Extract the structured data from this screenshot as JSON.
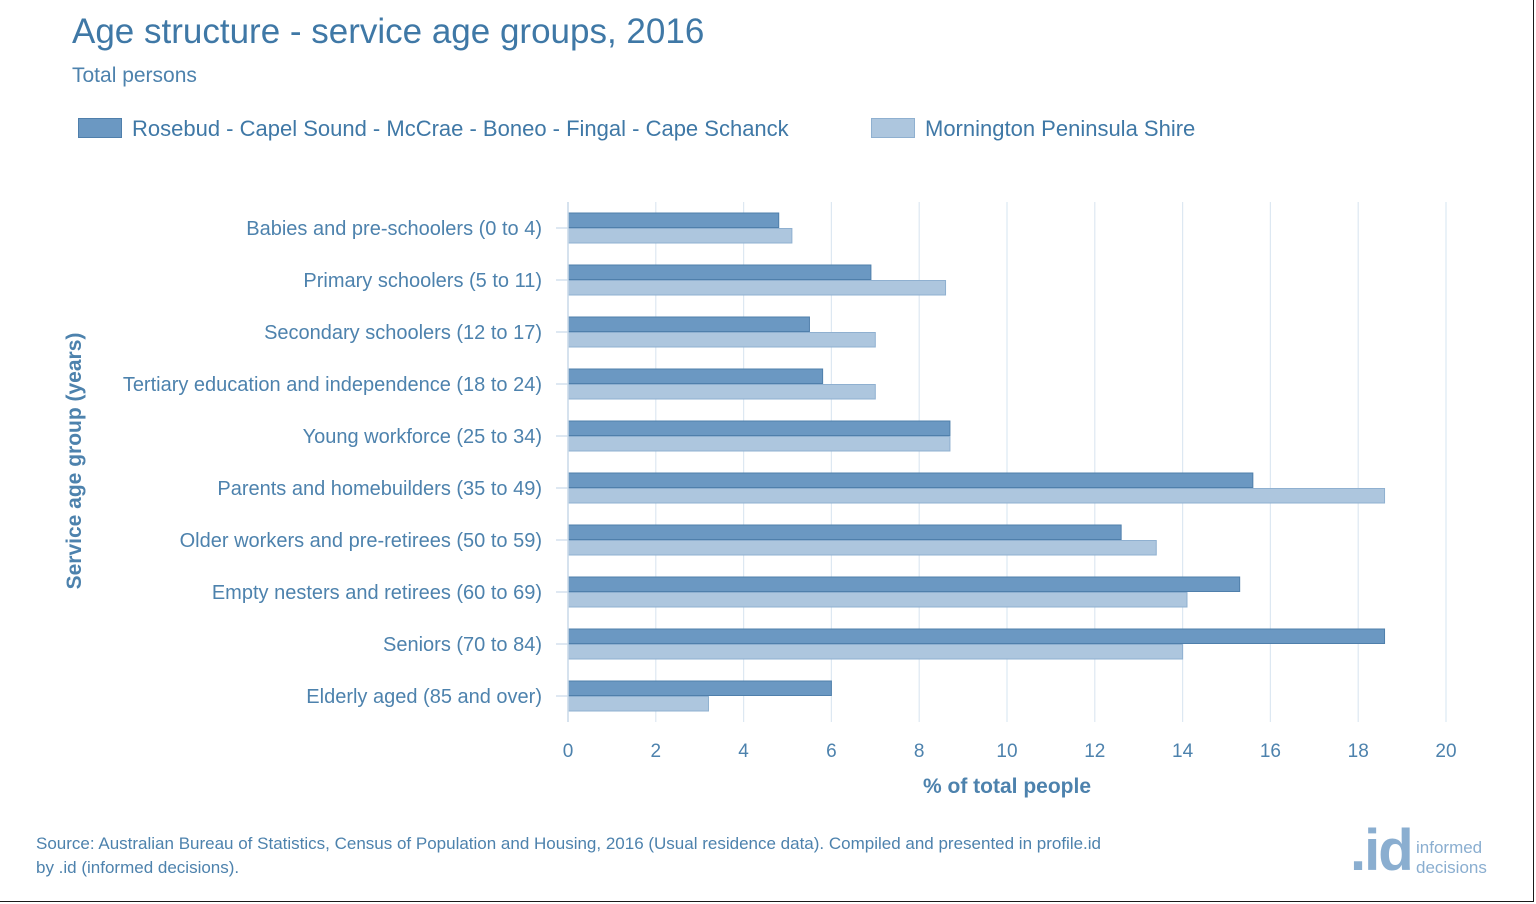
{
  "chart_data": {
    "type": "bar",
    "orientation": "horizontal",
    "title": "Age structure - service age groups, 2016",
    "subtitle": "Total persons",
    "xlabel": "% of total people",
    "ylabel": "Service age group (years)",
    "xlim": [
      0,
      20
    ],
    "xticks": [
      0,
      2,
      4,
      6,
      8,
      10,
      12,
      14,
      16,
      18,
      20
    ],
    "grid": true,
    "legend_position": "top",
    "categories": [
      "Babies and pre-schoolers (0 to 4)",
      "Primary schoolers (5 to 11)",
      "Secondary schoolers (12 to 17)",
      "Tertiary education and independence (18 to 24)",
      "Young workforce (25 to 34)",
      "Parents and homebuilders (35 to 49)",
      "Older workers and pre-retirees (50 to 59)",
      "Empty nesters and retirees (60 to 69)",
      "Seniors (70 to 84)",
      "Elderly aged (85 and over)"
    ],
    "series": [
      {
        "name": "Rosebud - Capel Sound - McCrae - Boneo - Fingal - Cape Schanck",
        "color": "#6b98c2",
        "values": [
          4.8,
          6.9,
          5.5,
          5.8,
          8.7,
          15.6,
          12.6,
          15.3,
          18.6,
          6.0
        ]
      },
      {
        "name": "Mornington Peninsula Shire",
        "color": "#adc6de",
        "values": [
          5.1,
          8.6,
          7.0,
          7.0,
          8.7,
          18.6,
          13.4,
          14.1,
          14.0,
          3.2
        ]
      }
    ]
  },
  "footer": {
    "source": "Source: Australian Bureau of Statistics, Census of Population and Housing, 2016 (Usual residence data). Compiled and presented in profile.id by .id (informed decisions).",
    "logo_mark": ".id",
    "logo_line1": "informed",
    "logo_line2": "decisions"
  }
}
